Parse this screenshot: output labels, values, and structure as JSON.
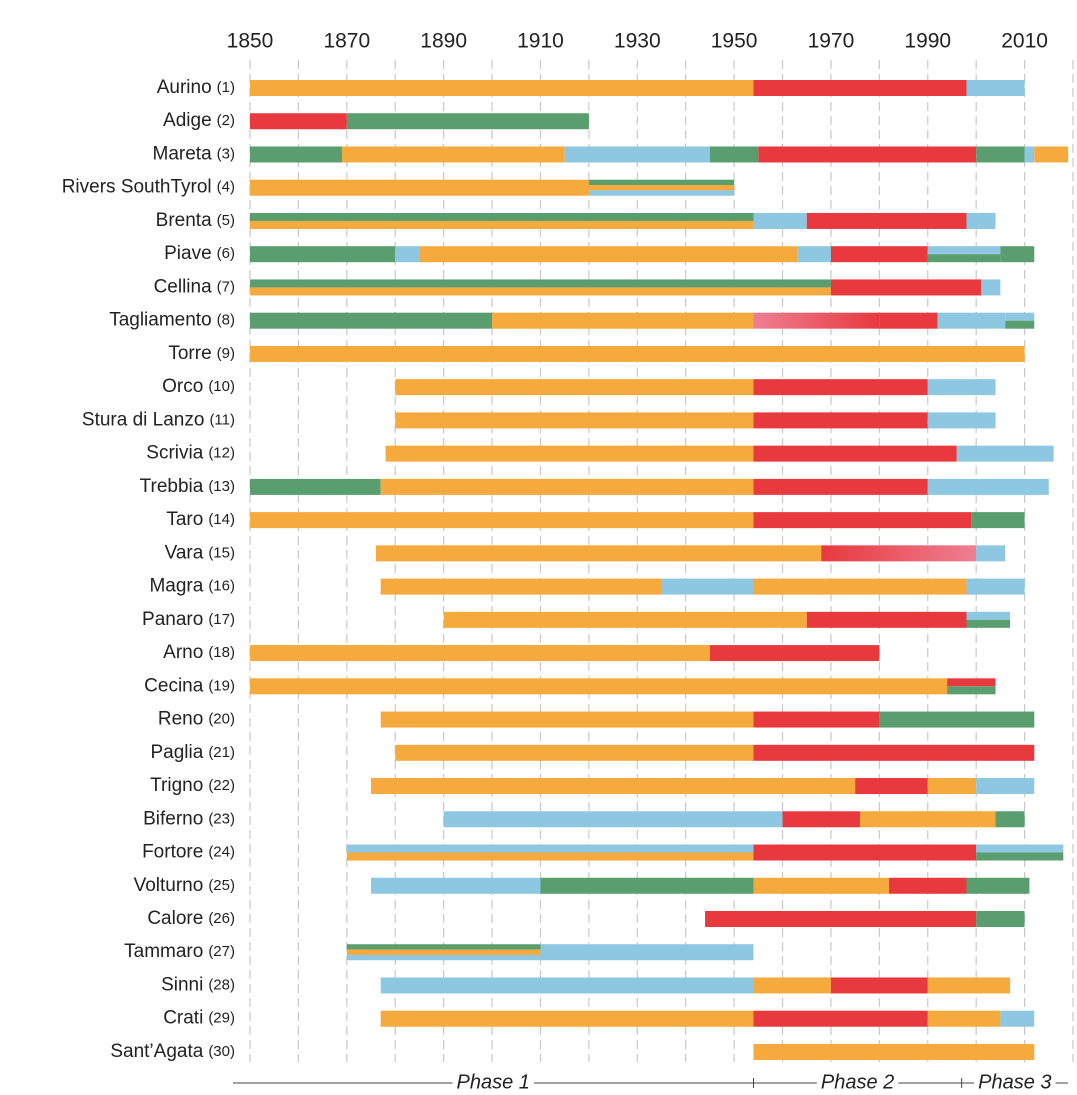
{
  "chart_data": {
    "type": "gantt",
    "colors": {
      "orange": "#f6a93c",
      "red": "#e8393e",
      "blue": "#8ec7e1",
      "green": "#5a9e70",
      "pink": "#ee7f92"
    },
    "xlim": [
      1850,
      2020
    ],
    "xticks": [
      1850,
      1870,
      1890,
      1910,
      1930,
      1950,
      1970,
      1990,
      2010
    ],
    "xgrid": [
      1850,
      1860,
      1870,
      1880,
      1890,
      1900,
      1910,
      1920,
      1930,
      1940,
      1950,
      1960,
      1970,
      1980,
      1990,
      2000,
      2010,
      2020
    ],
    "phases": [
      {
        "name": "Phase 1",
        "end": 1954
      },
      {
        "name": "Phase 2",
        "end": 1997
      },
      {
        "name": "Phase 3"
      }
    ],
    "rows": [
      {
        "name": "Aurino",
        "id": "(1)",
        "segments": [
          {
            "start": 1850,
            "end": 1954,
            "color": "orange"
          },
          {
            "start": 1954,
            "end": 1998,
            "color": "red"
          },
          {
            "start": 1998,
            "end": 2010,
            "color": "blue"
          }
        ]
      },
      {
        "name": "Adige",
        "id": "(2)",
        "segments": [
          {
            "start": 1850,
            "end": 1870,
            "color": "red"
          },
          {
            "start": 1870,
            "end": 1920,
            "color": "green"
          }
        ]
      },
      {
        "name": "Mareta",
        "id": "(3)",
        "segments": [
          {
            "start": 1850,
            "end": 1869,
            "color": "green"
          },
          {
            "start": 1869,
            "end": 1915,
            "color": "orange"
          },
          {
            "start": 1915,
            "end": 1945,
            "color": "blue"
          },
          {
            "start": 1945,
            "end": 1955,
            "color": "green"
          },
          {
            "start": 1955,
            "end": 2000,
            "color": "red"
          },
          {
            "start": 2000,
            "end": 2010,
            "color": "green"
          },
          {
            "start": 2010,
            "end": 2012,
            "color": "blue"
          },
          {
            "start": 2012,
            "end": 2019,
            "color": "orange"
          }
        ]
      },
      {
        "name": "Rivers SouthTyrol",
        "id": "(4)",
        "segments": [
          {
            "start": 1850,
            "end": 1920,
            "color": "orange"
          },
          {
            "start": 1920,
            "end": 1950,
            "color": "green",
            "band": "top"
          },
          {
            "start": 1920,
            "end": 1950,
            "color": "orange",
            "band": "middle"
          },
          {
            "start": 1920,
            "end": 1950,
            "color": "blue",
            "band": "bottom"
          }
        ]
      },
      {
        "name": "Brenta",
        "id": "(5)",
        "segments": [
          {
            "start": 1850,
            "end": 1954,
            "color": "green",
            "band": "upper"
          },
          {
            "start": 1850,
            "end": 1954,
            "color": "orange",
            "band": "lower"
          },
          {
            "start": 1954,
            "end": 1965,
            "color": "blue"
          },
          {
            "start": 1965,
            "end": 1998,
            "color": "red"
          },
          {
            "start": 1998,
            "end": 2004,
            "color": "blue"
          }
        ]
      },
      {
        "name": "Piave",
        "id": "(6)",
        "segments": [
          {
            "start": 1850,
            "end": 1880,
            "color": "green"
          },
          {
            "start": 1880,
            "end": 1885,
            "color": "blue"
          },
          {
            "start": 1885,
            "end": 1963,
            "color": "orange"
          },
          {
            "start": 1963,
            "end": 1970,
            "color": "blue"
          },
          {
            "start": 1970,
            "end": 1990,
            "color": "red"
          },
          {
            "start": 1990,
            "end": 2005,
            "color": "blue",
            "band": "upper"
          },
          {
            "start": 1990,
            "end": 2005,
            "color": "green",
            "band": "lower"
          },
          {
            "start": 2005,
            "end": 2012,
            "color": "green"
          }
        ]
      },
      {
        "name": "Cellina",
        "id": "(7)",
        "segments": [
          {
            "start": 1850,
            "end": 1970,
            "color": "green",
            "band": "upper"
          },
          {
            "start": 1850,
            "end": 1970,
            "color": "orange",
            "band": "lower"
          },
          {
            "start": 1970,
            "end": 2001,
            "color": "red"
          },
          {
            "start": 2001,
            "end": 2005,
            "color": "blue"
          }
        ]
      },
      {
        "name": "Tagliamento",
        "id": "(8)",
        "segments": [
          {
            "start": 1850,
            "end": 1900,
            "color": "green"
          },
          {
            "start": 1900,
            "end": 1954,
            "color": "orange"
          },
          {
            "start": 1954,
            "end": 1980,
            "color": "pink",
            "color_to": "red"
          },
          {
            "start": 1980,
            "end": 1992,
            "color": "red"
          },
          {
            "start": 1992,
            "end": 2006,
            "color": "blue"
          },
          {
            "start": 2006,
            "end": 2012,
            "color": "blue",
            "band": "upper"
          },
          {
            "start": 2006,
            "end": 2012,
            "color": "green",
            "band": "lower"
          }
        ]
      },
      {
        "name": "Torre",
        "id": "(9)",
        "segments": [
          {
            "start": 1850,
            "end": 2010,
            "color": "orange"
          }
        ]
      },
      {
        "name": "Orco",
        "id": "(10)",
        "segments": [
          {
            "start": 1880,
            "end": 1954,
            "color": "orange"
          },
          {
            "start": 1954,
            "end": 1990,
            "color": "red"
          },
          {
            "start": 1990,
            "end": 2004,
            "color": "blue"
          }
        ]
      },
      {
        "name": "Stura di Lanzo",
        "id": "(11)",
        "segments": [
          {
            "start": 1880,
            "end": 1954,
            "color": "orange"
          },
          {
            "start": 1954,
            "end": 1990,
            "color": "red"
          },
          {
            "start": 1990,
            "end": 2004,
            "color": "blue"
          }
        ]
      },
      {
        "name": "Scrivia",
        "id": "(12)",
        "segments": [
          {
            "start": 1878,
            "end": 1954,
            "color": "orange"
          },
          {
            "start": 1954,
            "end": 1996,
            "color": "red"
          },
          {
            "start": 1996,
            "end": 2016,
            "color": "blue"
          }
        ]
      },
      {
        "name": "Trebbia",
        "id": "(13)",
        "segments": [
          {
            "start": 1850,
            "end": 1877,
            "color": "green"
          },
          {
            "start": 1877,
            "end": 1954,
            "color": "orange"
          },
          {
            "start": 1954,
            "end": 1990,
            "color": "red"
          },
          {
            "start": 1990,
            "end": 2015,
            "color": "blue"
          }
        ]
      },
      {
        "name": "Taro",
        "id": "(14)",
        "segments": [
          {
            "start": 1850,
            "end": 1954,
            "color": "orange"
          },
          {
            "start": 1954,
            "end": 1999,
            "color": "red"
          },
          {
            "start": 1999,
            "end": 2010,
            "color": "green"
          }
        ]
      },
      {
        "name": "Vara",
        "id": "(15)",
        "segments": [
          {
            "start": 1876,
            "end": 1968,
            "color": "orange"
          },
          {
            "start": 1968,
            "end": 2000,
            "color": "red",
            "color_to": "pink"
          },
          {
            "start": 2000,
            "end": 2006,
            "color": "blue"
          }
        ]
      },
      {
        "name": "Magra",
        "id": "(16)",
        "segments": [
          {
            "start": 1877,
            "end": 1935,
            "color": "orange"
          },
          {
            "start": 1935,
            "end": 1954,
            "color": "blue"
          },
          {
            "start": 1954,
            "end": 1998,
            "color": "orange"
          },
          {
            "start": 1998,
            "end": 2010,
            "color": "blue"
          }
        ]
      },
      {
        "name": "Panaro",
        "id": "(17)",
        "segments": [
          {
            "start": 1890,
            "end": 1965,
            "color": "orange"
          },
          {
            "start": 1965,
            "end": 1998,
            "color": "red"
          },
          {
            "start": 1998,
            "end": 2007,
            "color": "blue",
            "band": "upper"
          },
          {
            "start": 1998,
            "end": 2007,
            "color": "green",
            "band": "lower"
          }
        ]
      },
      {
        "name": "Arno",
        "id": "(18)",
        "segments": [
          {
            "start": 1850,
            "end": 1945,
            "color": "orange"
          },
          {
            "start": 1945,
            "end": 1980,
            "color": "red"
          }
        ]
      },
      {
        "name": "Cecina",
        "id": "(19)",
        "segments": [
          {
            "start": 1850,
            "end": 1994,
            "color": "orange"
          },
          {
            "start": 1994,
            "end": 2004,
            "color": "red",
            "band": "upper"
          },
          {
            "start": 1994,
            "end": 2004,
            "color": "green",
            "band": "lower"
          }
        ]
      },
      {
        "name": "Reno",
        "id": "(20)",
        "segments": [
          {
            "start": 1877,
            "end": 1954,
            "color": "orange"
          },
          {
            "start": 1954,
            "end": 1980,
            "color": "red"
          },
          {
            "start": 1980,
            "end": 2012,
            "color": "green"
          }
        ]
      },
      {
        "name": "Paglia",
        "id": "(21)",
        "segments": [
          {
            "start": 1880,
            "end": 1954,
            "color": "orange"
          },
          {
            "start": 1954,
            "end": 2012,
            "color": "red"
          }
        ]
      },
      {
        "name": "Trigno",
        "id": "(22)",
        "segments": [
          {
            "start": 1875,
            "end": 1975,
            "color": "orange"
          },
          {
            "start": 1975,
            "end": 1990,
            "color": "red"
          },
          {
            "start": 1990,
            "end": 2000,
            "color": "orange"
          },
          {
            "start": 2000,
            "end": 2012,
            "color": "blue"
          }
        ]
      },
      {
        "name": "Biferno",
        "id": "(23)",
        "segments": [
          {
            "start": 1890,
            "end": 1960,
            "color": "blue"
          },
          {
            "start": 1960,
            "end": 1976,
            "color": "red"
          },
          {
            "start": 1976,
            "end": 2004,
            "color": "orange"
          },
          {
            "start": 2004,
            "end": 2010,
            "color": "green"
          }
        ]
      },
      {
        "name": "Fortore",
        "id": "(24)",
        "segments": [
          {
            "start": 1870,
            "end": 1954,
            "color": "blue",
            "band": "upper"
          },
          {
            "start": 1870,
            "end": 1954,
            "color": "orange",
            "band": "lower"
          },
          {
            "start": 1954,
            "end": 2000,
            "color": "red"
          },
          {
            "start": 2000,
            "end": 2018,
            "color": "blue",
            "band": "upper"
          },
          {
            "start": 2000,
            "end": 2018,
            "color": "green",
            "band": "lower"
          }
        ]
      },
      {
        "name": "Volturno",
        "id": "(25)",
        "segments": [
          {
            "start": 1875,
            "end": 1910,
            "color": "blue"
          },
          {
            "start": 1910,
            "end": 1954,
            "color": "green"
          },
          {
            "start": 1954,
            "end": 1982,
            "color": "orange"
          },
          {
            "start": 1982,
            "end": 1998,
            "color": "red"
          },
          {
            "start": 1998,
            "end": 2011,
            "color": "green"
          }
        ]
      },
      {
        "name": "Calore",
        "id": "(26)",
        "segments": [
          {
            "start": 1944,
            "end": 2000,
            "color": "red"
          },
          {
            "start": 2000,
            "end": 2010,
            "color": "green"
          }
        ]
      },
      {
        "name": "Tammaro",
        "id": "(27)",
        "segments": [
          {
            "start": 1870,
            "end": 1910,
            "color": "green",
            "band": "top"
          },
          {
            "start": 1870,
            "end": 1910,
            "color": "orange",
            "band": "middle"
          },
          {
            "start": 1870,
            "end": 1910,
            "color": "blue",
            "band": "bottom"
          },
          {
            "start": 1910,
            "end": 1954,
            "color": "blue"
          }
        ]
      },
      {
        "name": "Sinni",
        "id": "(28)",
        "segments": [
          {
            "start": 1877,
            "end": 1954,
            "color": "blue"
          },
          {
            "start": 1954,
            "end": 1970,
            "color": "orange"
          },
          {
            "start": 1970,
            "end": 1990,
            "color": "red"
          },
          {
            "start": 1990,
            "end": 2007,
            "color": "orange"
          }
        ]
      },
      {
        "name": "Crati",
        "id": "(29)",
        "segments": [
          {
            "start": 1877,
            "end": 1954,
            "color": "orange"
          },
          {
            "start": 1954,
            "end": 1990,
            "color": "red"
          },
          {
            "start": 1990,
            "end": 2005,
            "color": "orange"
          },
          {
            "start": 2005,
            "end": 2012,
            "color": "blue"
          }
        ]
      },
      {
        "name": "Sant’Agata",
        "id": "(30)",
        "segments": [
          {
            "start": 1954,
            "end": 2012,
            "color": "orange"
          }
        ]
      }
    ]
  }
}
